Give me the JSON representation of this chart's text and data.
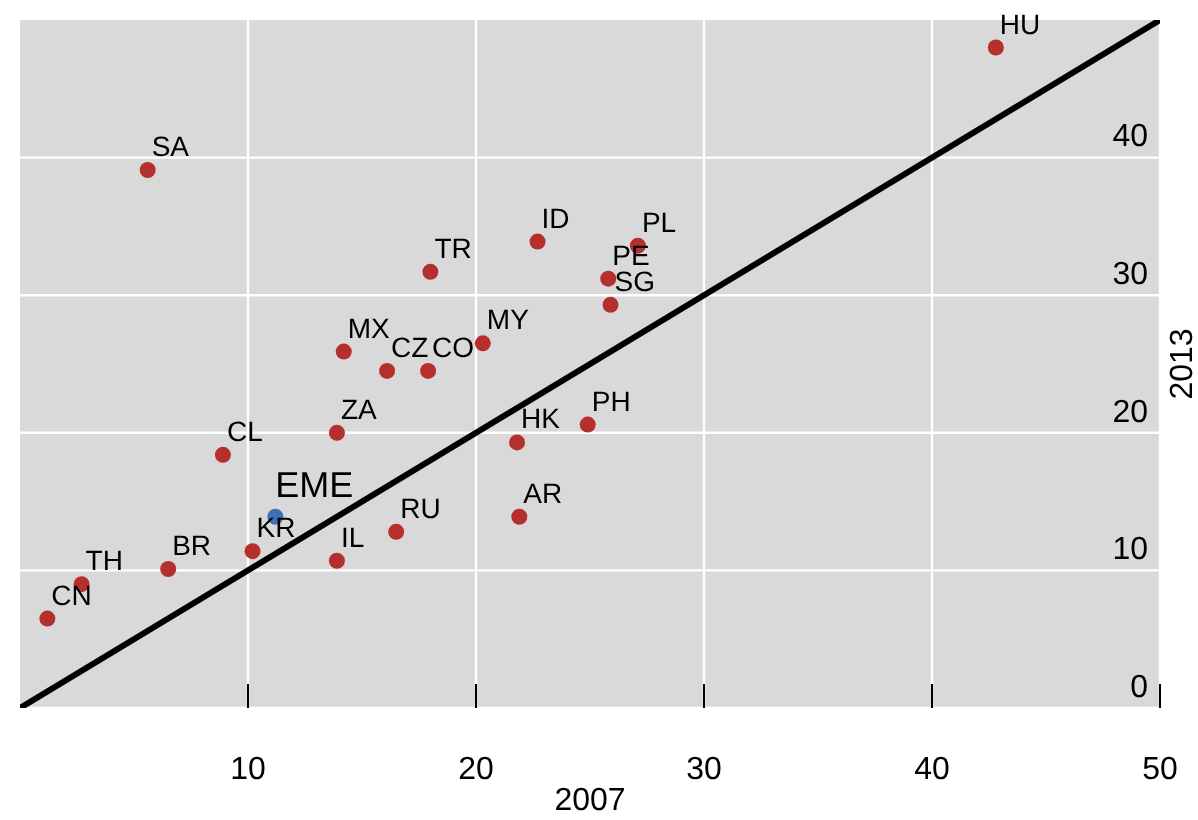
{
  "chart_data": {
    "type": "scatter",
    "xlabel": "2007",
    "ylabel": "2013",
    "xlim": [
      0,
      50
    ],
    "ylim": [
      0,
      50
    ],
    "xticks": [
      10,
      20,
      30,
      40,
      50
    ],
    "yticks": [
      0,
      10,
      20,
      30,
      40
    ],
    "grid": true,
    "series": [
      {
        "color": "#b5302c",
        "marker": "circle",
        "x": [
          42.8,
          5.6,
          18.0,
          22.7,
          27.1,
          25.8,
          25.9,
          20.3,
          14.2,
          16.1,
          17.9,
          13.9,
          8.9,
          21.8,
          24.9,
          21.9,
          16.5,
          13.9,
          10.2,
          6.5,
          2.7,
          1.2
        ],
        "values": [
          48.0,
          39.1,
          31.7,
          33.9,
          33.6,
          31.2,
          29.3,
          26.5,
          25.9,
          24.5,
          24.5,
          20.0,
          18.4,
          19.3,
          20.6,
          13.9,
          12.8,
          10.7,
          11.4,
          10.1,
          9.0,
          6.5
        ]
      },
      {
        "color": "#3f6fb5",
        "marker": "circle",
        "x": [
          11.2
        ],
        "values": [
          13.9
        ]
      },
      {
        "type": "line",
        "color": "#000000",
        "x": [
          0,
          50
        ],
        "values": [
          0,
          50
        ]
      }
    ],
    "annotations": [
      {
        "text": "HU",
        "x": 42.8,
        "y": 48.0
      },
      {
        "text": "SA",
        "x": 5.6,
        "y": 39.1
      },
      {
        "text": "TR",
        "x": 18.0,
        "y": 31.7
      },
      {
        "text": "ID",
        "x": 22.7,
        "y": 33.9
      },
      {
        "text": "PL",
        "x": 27.1,
        "y": 33.6
      },
      {
        "text": "PE",
        "x": 25.8,
        "y": 31.2
      },
      {
        "text": "SG",
        "x": 25.9,
        "y": 29.3
      },
      {
        "text": "MY",
        "x": 20.3,
        "y": 26.5
      },
      {
        "text": "MX",
        "x": 14.2,
        "y": 25.9
      },
      {
        "text": "CZ",
        "x": 16.1,
        "y": 24.5
      },
      {
        "text": "CO",
        "x": 17.9,
        "y": 24.5
      },
      {
        "text": "ZA",
        "x": 13.9,
        "y": 20.0
      },
      {
        "text": "CL",
        "x": 8.9,
        "y": 18.4
      },
      {
        "text": "HK",
        "x": 21.8,
        "y": 19.3
      },
      {
        "text": "PH",
        "x": 24.9,
        "y": 20.6
      },
      {
        "text": "AR",
        "x": 21.9,
        "y": 13.9
      },
      {
        "text": "RU",
        "x": 16.5,
        "y": 12.8
      },
      {
        "text": "IL",
        "x": 13.9,
        "y": 10.7
      },
      {
        "text": "KR",
        "x": 10.2,
        "y": 11.4
      },
      {
        "text": "BR",
        "x": 6.5,
        "y": 10.1
      },
      {
        "text": "TH",
        "x": 2.7,
        "y": 9.0
      },
      {
        "text": "CN",
        "x": 1.2,
        "y": 6.5
      },
      {
        "text": "EME",
        "x": 11.2,
        "y": 13.9
      }
    ]
  }
}
